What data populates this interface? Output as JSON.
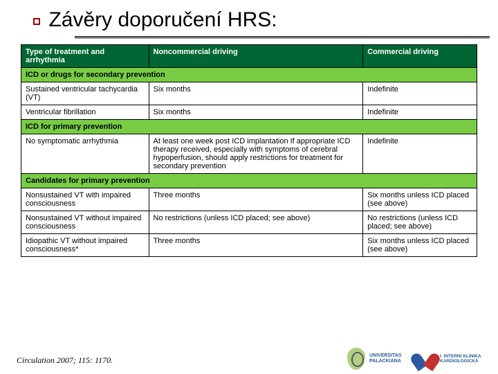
{
  "title": "Závěry doporučení HRS:",
  "citation": "Circulation 2007; 115: 1170.",
  "table": {
    "background_header": "#006633",
    "background_section": "#77cc44",
    "text_header": "#ffffff",
    "border_color": "#000000",
    "font_size": 11,
    "columns": {
      "c1": "Type of treatment and arrhythmia",
      "c2": "Noncommercial driving",
      "c3": "Commercial driving"
    },
    "sections": [
      {
        "heading": "ICD or drugs for secondary prevention",
        "rows": [
          {
            "c1": "Sustained ventricular tachycardia (VT)",
            "c2": "Six months",
            "c3": "Indefinite"
          },
          {
            "c1": "Ventricular fibrillation",
            "c2": "Six months",
            "c3": "Indefinite"
          }
        ]
      },
      {
        "heading": "ICD for primary prevention",
        "rows": [
          {
            "c1": "No symptomatic arrhythmia",
            "c2": "At least one week post ICD implantation If appropriate ICD therapy received, especially with symptoms of cerebral hypoperfusion, should apply restrictions for treatment for secondary prevention",
            "c3": "Indefinite"
          }
        ]
      },
      {
        "heading": "Candidates for primary prevention",
        "rows": [
          {
            "c1": "Nonsustained VT with impaired consciousness",
            "c2": "Three months",
            "c3": "Six months unless ICD placed (see above)"
          },
          {
            "c1": "Nonsustained VT without impaired consciousness",
            "c2": "No restrictions (unless ICD placed; see above)",
            "c3": "No restrictions (unless ICD placed; see above)"
          },
          {
            "c1": "Idiopathic VT without impaired consciousness*",
            "c2": "Three months",
            "c3": "Six months unless ICD placed (see above)"
          }
        ]
      }
    ]
  },
  "logos": {
    "univ_line1": "UNIVERSITAS",
    "univ_line2": "PALACKIANA",
    "clinic_line1": "I. INTERNÍ KLINIKA",
    "clinic_line2": "KARDIOLOGICKÁ"
  }
}
